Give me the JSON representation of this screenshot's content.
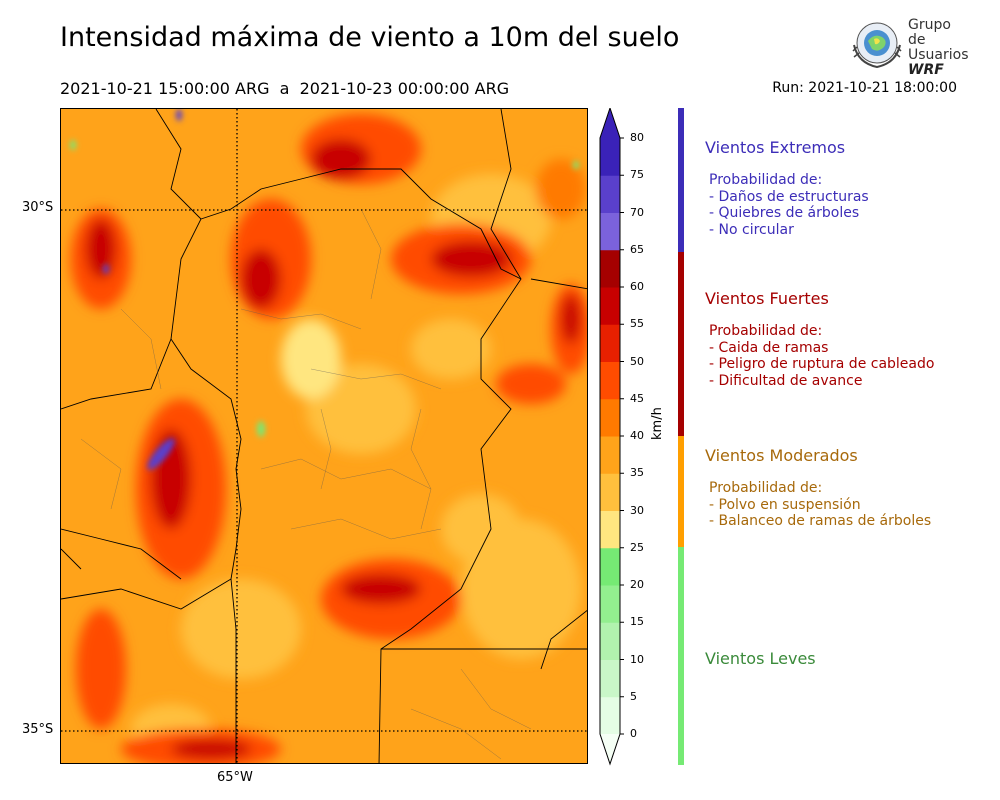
{
  "header": {
    "title": "Intensidad máxima de viento a 10m del suelo",
    "period": "2021-10-21 15:00:00 ARG  a  2021-10-23 00:00:00 ARG",
    "run": "Run: 2021-10-21 18:00:00"
  },
  "logo": {
    "line1": "Grupo de",
    "line2": "Usuarios",
    "line3": "WRF"
  },
  "map": {
    "lat_labels": [
      "30°S",
      "35°S"
    ],
    "lon_labels": [
      "65°W"
    ]
  },
  "colorbar": {
    "unit": "km/h",
    "ticks": [
      "80",
      "75",
      "70",
      "65",
      "60",
      "55",
      "50",
      "45",
      "40",
      "35",
      "30",
      "25",
      "20",
      "15",
      "10",
      "5",
      "0"
    ],
    "colors": [
      "#e4fde4",
      "#c9f7c8",
      "#b1f3ae",
      "#93ef8f",
      "#76ea74",
      "#ffe680",
      "#ffc03d",
      "#ffa31a",
      "#ff7a00",
      "#ff4c00",
      "#e82000",
      "#c80000",
      "#a50000",
      "#7b62dc",
      "#5a40cc",
      "#3a22b8"
    ]
  },
  "categories": [
    {
      "title": "Vientos Extremos",
      "color": "#3c2db8",
      "desc": [
        "Probabilidad de:",
        "- Daños de estructuras",
        "- Quiebres de árboles",
        "- No circular"
      ]
    },
    {
      "title": "Vientos Fuertes",
      "color": "#a50000",
      "desc": [
        "Probabilidad de:",
        "- Caida de ramas",
        "- Peligro de ruptura de cableado",
        "- Dificultad de avance"
      ]
    },
    {
      "title": "Vientos Moderados",
      "color": "#a7690b",
      "desc": [
        "Probabilidad de:",
        "- Polvo en suspensión",
        "- Balanceo de ramas de árboles"
      ]
    },
    {
      "title": "Vientos Leves",
      "color": "#3a8a3a",
      "desc": []
    }
  ]
}
